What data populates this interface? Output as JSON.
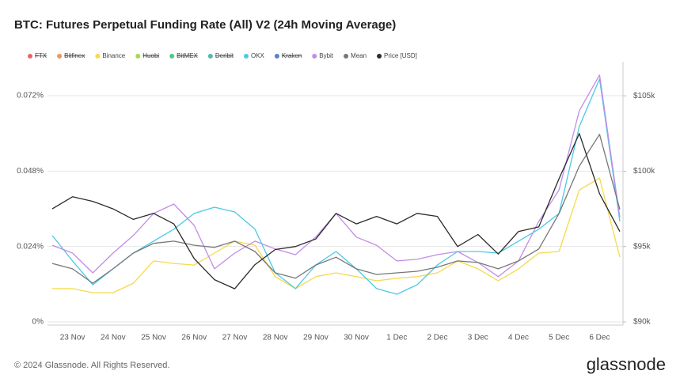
{
  "title": "BTC: Futures Perpetual Funding Rate (All) V2 (24h Moving Average)",
  "footer": "© 2024 Glassnode. All Rights Reserved.",
  "brand": "glassnode",
  "chart_data": {
    "type": "line",
    "categories": [
      null,
      "23 Nov",
      null,
      "24 Nov",
      null,
      "25 Nov",
      null,
      "26 Nov",
      null,
      "27 Nov",
      null,
      "28 Nov",
      null,
      "29 Nov",
      null,
      "30 Nov",
      null,
      "1 Dec",
      null,
      "2 Dec",
      null,
      "3 Dec",
      null,
      "4 Dec",
      null,
      "5 Dec",
      null,
      "6 Dec",
      null
    ],
    "ylim": [
      0,
      0.0803
    ],
    "yticks": [
      {
        "value": 0,
        "label": "0%"
      },
      {
        "value": 0.024,
        "label": "0.024%"
      },
      {
        "value": 0.048,
        "label": "0.048%"
      },
      {
        "value": 0.072,
        "label": "0.072%"
      }
    ],
    "y2lim": [
      90000,
      106740
    ],
    "y2ticks": [
      {
        "value": 90000,
        "label": "$90k"
      },
      {
        "value": 95000,
        "label": "$95k"
      },
      {
        "value": 100000,
        "label": "$100k"
      },
      {
        "value": 105000,
        "label": "$105k"
      }
    ],
    "grid": true,
    "series": [
      {
        "name": "FTX",
        "color": "#e8646a",
        "visible": false
      },
      {
        "name": "Bitfinex",
        "color": "#f0955a",
        "visible": false
      },
      {
        "name": "Binance",
        "color": "#f7d94c",
        "visible": true,
        "values": [
          0.0106,
          0.0106,
          0.0093,
          0.0093,
          0.0123,
          0.0194,
          0.0186,
          0.0181,
          0.0219,
          0.0257,
          0.0244,
          0.0144,
          0.0106,
          0.0144,
          0.0156,
          0.0144,
          0.0131,
          0.0139,
          0.0144,
          0.0156,
          0.0194,
          0.0169,
          0.0131,
          0.0169,
          0.0219,
          0.0224,
          0.042,
          0.0458,
          0.0206
        ]
      },
      {
        "name": "Huobi",
        "color": "#a6d854",
        "visible": false
      },
      {
        "name": "BitMEX",
        "color": "#4bc88a",
        "visible": false
      },
      {
        "name": "Deribit",
        "color": "#4fb8b0",
        "visible": false
      },
      {
        "name": "OKX",
        "color": "#4cc9e8",
        "visible": true,
        "values": [
          0.0275,
          0.0194,
          0.0118,
          0.0169,
          0.0219,
          0.0257,
          0.0295,
          0.0345,
          0.0365,
          0.035,
          0.0295,
          0.0156,
          0.0106,
          0.0181,
          0.0224,
          0.0169,
          0.0106,
          0.0088,
          0.0118,
          0.0181,
          0.0224,
          0.0224,
          0.0219,
          0.0257,
          0.0295,
          0.0345,
          0.0622,
          0.0773,
          0.032
        ]
      },
      {
        "name": "Kraken",
        "color": "#5b7fd4",
        "visible": false
      },
      {
        "name": "Bybit",
        "color": "#c38ce8",
        "visible": true,
        "values": [
          0.0244,
          0.0219,
          0.0156,
          0.0219,
          0.0275,
          0.0345,
          0.0375,
          0.0307,
          0.0169,
          0.0219,
          0.0257,
          0.0232,
          0.0214,
          0.027,
          0.0345,
          0.027,
          0.0244,
          0.0194,
          0.0199,
          0.0214,
          0.0224,
          0.0189,
          0.0144,
          0.0194,
          0.032,
          0.042,
          0.0672,
          0.0786,
          0.0332
        ]
      },
      {
        "name": "Mean",
        "color": "#777777",
        "visible": true,
        "values": [
          0.0186,
          0.0169,
          0.0123,
          0.0169,
          0.0219,
          0.025,
          0.0257,
          0.0244,
          0.0237,
          0.0257,
          0.0224,
          0.0156,
          0.0139,
          0.0181,
          0.0206,
          0.0169,
          0.0151,
          0.0156,
          0.0161,
          0.0174,
          0.0194,
          0.0189,
          0.0169,
          0.0194,
          0.0232,
          0.0345,
          0.0496,
          0.0597,
          0.0358
        ]
      },
      {
        "name": "Price [USD]",
        "color": "#2b2b2b",
        "visible": true,
        "axis": "y2",
        "values": [
          97500,
          98300,
          98000,
          97500,
          96800,
          97200,
          96500,
          94200,
          92800,
          92200,
          93800,
          94800,
          95000,
          95500,
          97200,
          96500,
          97000,
          96500,
          97200,
          97000,
          95000,
          95800,
          94500,
          96000,
          96300,
          99500,
          102500,
          98500,
          96000
        ]
      }
    ]
  }
}
